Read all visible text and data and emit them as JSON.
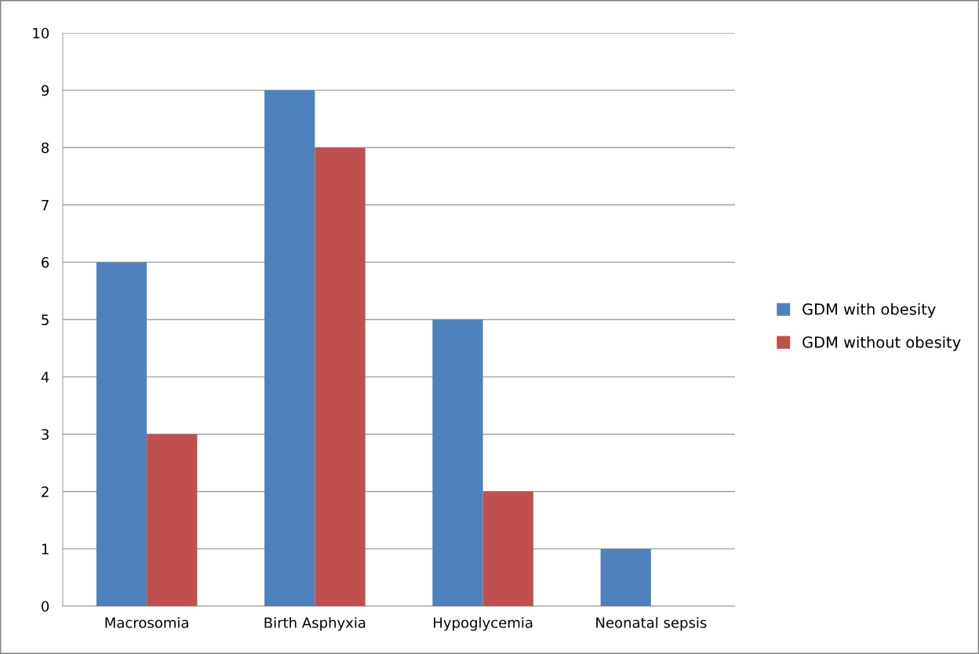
{
  "chart_data": {
    "type": "bar",
    "categories": [
      "Macrosomia",
      "Birth Asphyxia",
      "Hypoglycemia",
      "Neonatal sepsis"
    ],
    "series": [
      {
        "name": "GDM with obesity",
        "color": "#4f81bd",
        "values": [
          6,
          9,
          5,
          1
        ]
      },
      {
        "name": "GDM without obesity",
        "color": "#c0504d",
        "values": [
          3,
          8,
          2,
          0
        ]
      }
    ],
    "ylim": [
      0,
      10
    ],
    "yticks": [
      0,
      1,
      2,
      3,
      4,
      5,
      6,
      7,
      8,
      9,
      10
    ],
    "grid": "y",
    "legend": "right"
  }
}
